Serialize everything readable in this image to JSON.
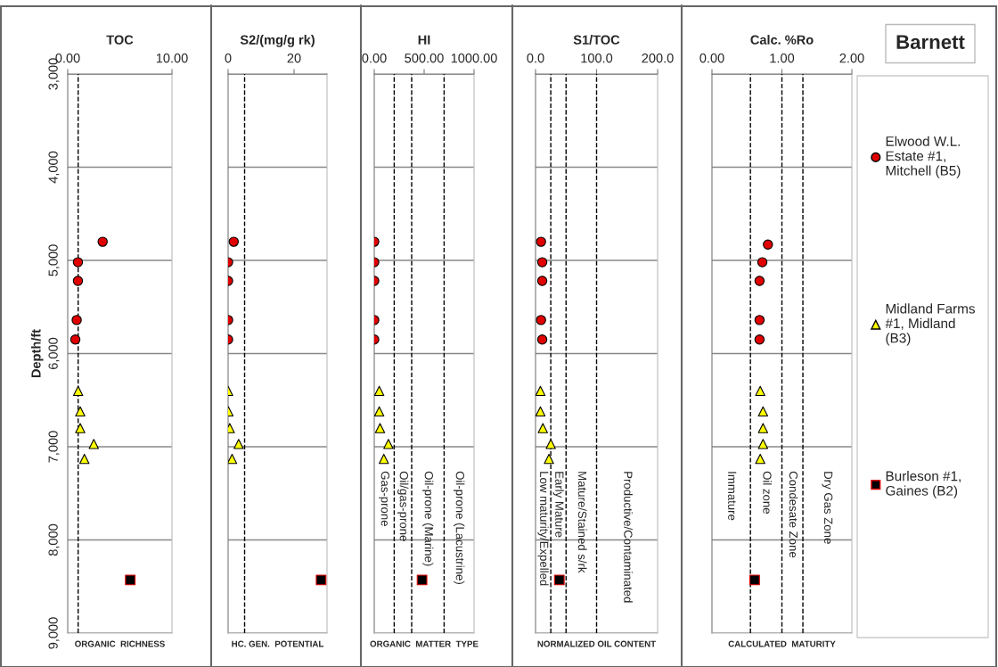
{
  "chart_data": [
    {
      "type": "scatter",
      "title": "TOC",
      "xlabel": "ORGANIC  RICHNESS",
      "ylabel": "Depth/ft",
      "xlim": [
        0,
        10
      ],
      "xticks": [
        {
          "value": 0,
          "label": "0.00"
        },
        {
          "value": 10,
          "label": "10.00"
        }
      ],
      "ylim": [
        9000,
        3000
      ],
      "yticks": [
        {
          "value": 3000,
          "label": "3,000"
        },
        {
          "value": 4000,
          "label": "4,000"
        },
        {
          "value": 5000,
          "label": "5,000"
        },
        {
          "value": 6000,
          "label": "6,000"
        },
        {
          "value": 7000,
          "label": "7,000"
        },
        {
          "value": 8000,
          "label": "8,000"
        },
        {
          "value": 9000,
          "label": "9,000"
        }
      ],
      "grid": "y",
      "legend": "right",
      "ref_lines": [
        {
          "axis": "x",
          "value": 1.0,
          "line_style": "dashed"
        }
      ],
      "series": [
        {
          "name": "Elwood W.L.\nEstate #1,\nMitchell (B5)",
          "color": "#e00000",
          "marker": "circle",
          "x": [
            3.35,
            0.98,
            0.98,
            0.86,
            0.73
          ],
          "values": [
            4800,
            5020,
            5220,
            5640,
            5850
          ]
        },
        {
          "name": "Midland Farms\n#1, Midland\n(B3)",
          "color": "#ffff00",
          "marker": "triangle",
          "x": [
            1.0,
            1.2,
            1.2,
            2.5,
            1.6
          ],
          "values": [
            6400,
            6620,
            6800,
            6970,
            7130
          ]
        },
        {
          "name": "Burleson #1,\nGaines (B2)",
          "color": "#000000",
          "marker": "square",
          "x": [
            6.0
          ],
          "values": [
            8430
          ]
        }
      ]
    },
    {
      "type": "scatter",
      "title": "S2/(mg/g rk)",
      "xlabel": "HC. GEN.  POTENTIAL",
      "xlim": [
        0,
        30
      ],
      "xticks": [
        0,
        20
      ],
      "ylim": [
        9000,
        3000
      ],
      "yticks": [
        {
          "value": 3000,
          "label": null
        },
        {
          "value": 4000,
          "label": null
        },
        {
          "value": 5000,
          "label": null
        },
        {
          "value": 6000,
          "label": null
        },
        {
          "value": 7000,
          "label": null
        },
        {
          "value": 8000,
          "label": null
        },
        {
          "value": 9000,
          "label": null
        }
      ],
      "grid": "y",
      "tick_labels": "x",
      "ref_lines": [
        {
          "axis": "x",
          "value": 5,
          "line_style": "dashed"
        }
      ],
      "series": [
        {
          "name": "Elwood W.L.\nEstate #1,\nMitchell (B5)",
          "color": "#e00000",
          "marker": "circle",
          "x": [
            1.7,
            0.0,
            0.0,
            0.0,
            0.0
          ],
          "values": [
            4800,
            5020,
            5220,
            5640,
            5850
          ]
        },
        {
          "name": "Midland Farms\n#1, Midland\n(B3)",
          "color": "#ffff00",
          "marker": "triangle",
          "x": [
            0.0,
            0.1,
            0.5,
            3.2,
            1.2
          ],
          "values": [
            6400,
            6620,
            6800,
            6970,
            7130
          ]
        },
        {
          "name": "Burleson #1,\nGaines (B2)",
          "color": "#000000",
          "marker": "square",
          "x": [
            28.2
          ],
          "values": [
            8430
          ]
        }
      ]
    },
    {
      "type": "scatter",
      "title": "HI",
      "xlabel": "ORGANIC  MATTER  TYPE",
      "xlim": [
        0,
        1000
      ],
      "xticks": [
        {
          "value": 0,
          "label": "0.00"
        },
        {
          "value": 500,
          "label": "500.00"
        },
        {
          "value": 1000,
          "label": "1000.00"
        }
      ],
      "ylim": [
        9000,
        3000
      ],
      "yticks": [
        {
          "value": 3000,
          "label": null
        },
        {
          "value": 4000,
          "label": null
        },
        {
          "value": 5000,
          "label": null
        },
        {
          "value": 6000,
          "label": null
        },
        {
          "value": 7000,
          "label": null
        },
        {
          "value": 8000,
          "label": null
        },
        {
          "value": 9000,
          "label": null
        }
      ],
      "grid": "y",
      "tick_labels": "x",
      "ref_lines": [
        {
          "axis": "x",
          "value": 200,
          "line_style": "dashed"
        },
        {
          "axis": "x",
          "value": 375,
          "line_style": "dashed"
        },
        {
          "axis": "x",
          "value": 700,
          "line_style": "dashed"
        }
      ],
      "annotations": [
        "Gas-prone",
        "Oil/gas-prone",
        "Oil-prone (Marine)",
        "Oil-prone (Lacustrine)"
      ],
      "series": [
        {
          "name": "Elwood W.L.\nEstate #1,\nMitchell (B5)",
          "color": "#e00000",
          "marker": "circle",
          "x": [
            0,
            0,
            0,
            0,
            0
          ],
          "values": [
            4800,
            5020,
            5220,
            5640,
            5850
          ]
        },
        {
          "name": "Midland Farms\n#1, Midland\n(B3)",
          "color": "#ffff00",
          "marker": "triangle",
          "x": [
            50,
            50,
            58,
            142,
            96
          ],
          "values": [
            6400,
            6620,
            6800,
            6970,
            7130
          ]
        },
        {
          "name": "Burleson #1,\nGaines (B2)",
          "color": "#000000",
          "marker": "square",
          "x": [
            479
          ],
          "values": [
            8430
          ]
        }
      ]
    },
    {
      "type": "scatter",
      "title": "S1/TOC",
      "xlabel": "NORMALIZED OIL CONTENT",
      "xlim": [
        0,
        200
      ],
      "xticks": [
        {
          "value": 0,
          "label": "0.0"
        },
        {
          "value": 100,
          "label": "100.0"
        },
        {
          "value": 200,
          "label": "200.0"
        }
      ],
      "ylim": [
        9000,
        3000
      ],
      "yticks": [
        {
          "value": 3000,
          "label": null
        },
        {
          "value": 4000,
          "label": null
        },
        {
          "value": 5000,
          "label": null
        },
        {
          "value": 6000,
          "label": null
        },
        {
          "value": 7000,
          "label": null
        },
        {
          "value": 8000,
          "label": null
        },
        {
          "value": 9000,
          "label": null
        }
      ],
      "grid": "y",
      "tick_labels": "x",
      "ref_lines": [
        {
          "axis": "x",
          "value": 25,
          "line_style": "dashed"
        },
        {
          "axis": "x",
          "value": 50,
          "line_style": "dashed"
        },
        {
          "axis": "x",
          "value": 100,
          "line_style": "dashed"
        }
      ],
      "annotations": [
        "Low maturity/Expelled",
        "Early Mature",
        "Mature/Stained s/rk",
        "Productive/Contaminated"
      ],
      "series": [
        {
          "name": "Elwood W.L.\nEstate #1,\nMitchell (B5)",
          "color": "#e00000",
          "marker": "circle",
          "x": [
            9,
            11,
            11,
            9,
            11
          ],
          "values": [
            4800,
            5020,
            5220,
            5640,
            5850
          ]
        },
        {
          "name": "Midland Farms\n#1, Midland\n(B3)",
          "color": "#ffff00",
          "marker": "triangle",
          "x": [
            8,
            8,
            12,
            25,
            22
          ],
          "values": [
            6400,
            6620,
            6800,
            6970,
            7130
          ]
        },
        {
          "name": "Burleson #1,\nGaines (B2)",
          "color": "#000000",
          "marker": "square",
          "x": [
            39
          ],
          "values": [
            8430
          ]
        }
      ]
    },
    {
      "type": "scatter",
      "title": "Calc. %Ro",
      "xlabel": "CALCULATED  MATURITY",
      "xlim": [
        0,
        2
      ],
      "xticks": [
        {
          "value": 0,
          "label": "0.00"
        },
        {
          "value": 1,
          "label": "1.00"
        },
        {
          "value": 2,
          "label": "2.00"
        }
      ],
      "ylim": [
        9000,
        3000
      ],
      "yticks": [
        {
          "value": 3000,
          "label": null
        },
        {
          "value": 4000,
          "label": null
        },
        {
          "value": 5000,
          "label": null
        },
        {
          "value": 6000,
          "label": null
        },
        {
          "value": 7000,
          "label": null
        },
        {
          "value": 8000,
          "label": null
        },
        {
          "value": 9000,
          "label": null
        }
      ],
      "grid": "y",
      "tick_labels": "x",
      "ref_lines": [
        {
          "axis": "x",
          "value": 0.55,
          "line_style": "dashed"
        },
        {
          "axis": "x",
          "value": 1.0,
          "line_style": "dashed"
        },
        {
          "axis": "x",
          "value": 1.3,
          "line_style": "dashed"
        }
      ],
      "annotations": [
        "Immature",
        "Oil zone",
        "Condesate Zone",
        "Dry Gas Zone"
      ],
      "series": [
        {
          "name": "Elwood W.L.\nEstate #1,\nMitchell (B5)",
          "color": "#e00000",
          "marker": "circle",
          "x": [
            0.8,
            0.72,
            0.68,
            0.68,
            0.68
          ],
          "values": [
            4830,
            5020,
            5220,
            5640,
            5850
          ]
        },
        {
          "name": "Midland Farms\n#1, Midland\n(B3)",
          "color": "#ffff00",
          "marker": "triangle",
          "x": [
            0.69,
            0.73,
            0.73,
            0.73,
            0.69
          ],
          "values": [
            6400,
            6620,
            6800,
            6970,
            7130
          ]
        },
        {
          "name": "Burleson #1,\nGaines (B2)",
          "color": "#000000",
          "marker": "square",
          "x": [
            0.61
          ],
          "values": [
            8430
          ]
        }
      ]
    },
    {
      "type": "other",
      "title": "Barnett"
    }
  ]
}
